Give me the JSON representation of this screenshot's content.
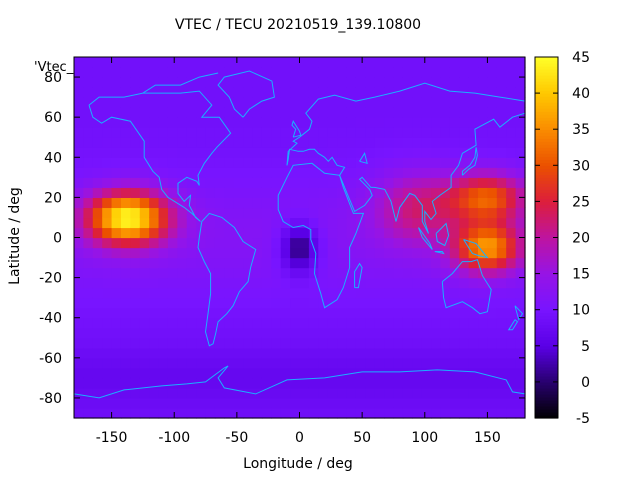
{
  "chart_data": {
    "type": "heatmap",
    "title": "VTEC / TECU 20210519_139.10800",
    "xlabel": "Longitude / deg",
    "ylabel": "Latitude / deg",
    "legend_key": "'Vtec_",
    "xlim": [
      -180,
      180
    ],
    "ylim": [
      -90,
      90
    ],
    "x_ticks": [
      -150,
      -100,
      -50,
      0,
      50,
      100,
      150
    ],
    "y_ticks": [
      -80,
      -60,
      -40,
      -20,
      0,
      20,
      40,
      60,
      80
    ],
    "colorbar": {
      "range": [
        -5,
        45
      ],
      "ticks": [
        -5,
        0,
        5,
        10,
        15,
        20,
        25,
        30,
        35,
        40,
        45
      ],
      "colormap": "black-purple-blue-magenta-red-orange-yellow"
    },
    "background_value": 9,
    "features": [
      {
        "name": "east-pacific-peak",
        "lon": -137,
        "lat": 10,
        "value": 42,
        "spread_lon": 32,
        "spread_lat": 13
      },
      {
        "name": "west-pacific-peak",
        "lon": 150,
        "lat": -5,
        "value": 33,
        "spread_lon": 26,
        "spread_lat": 12
      },
      {
        "name": "west-pacific-north",
        "lon": 150,
        "lat": 20,
        "value": 29,
        "spread_lon": 30,
        "spread_lat": 12
      },
      {
        "name": "asia-band",
        "lon": 95,
        "lat": 15,
        "value": 20,
        "spread_lon": 35,
        "spread_lat": 18
      },
      {
        "name": "africa-minimum",
        "lon": 0,
        "lat": -5,
        "value": -2,
        "spread_lon": 15,
        "spread_lat": 12
      }
    ],
    "overlay": "coastlines"
  },
  "colors": {
    "coastline": "#1ab0ff",
    "axis": "#000000"
  }
}
